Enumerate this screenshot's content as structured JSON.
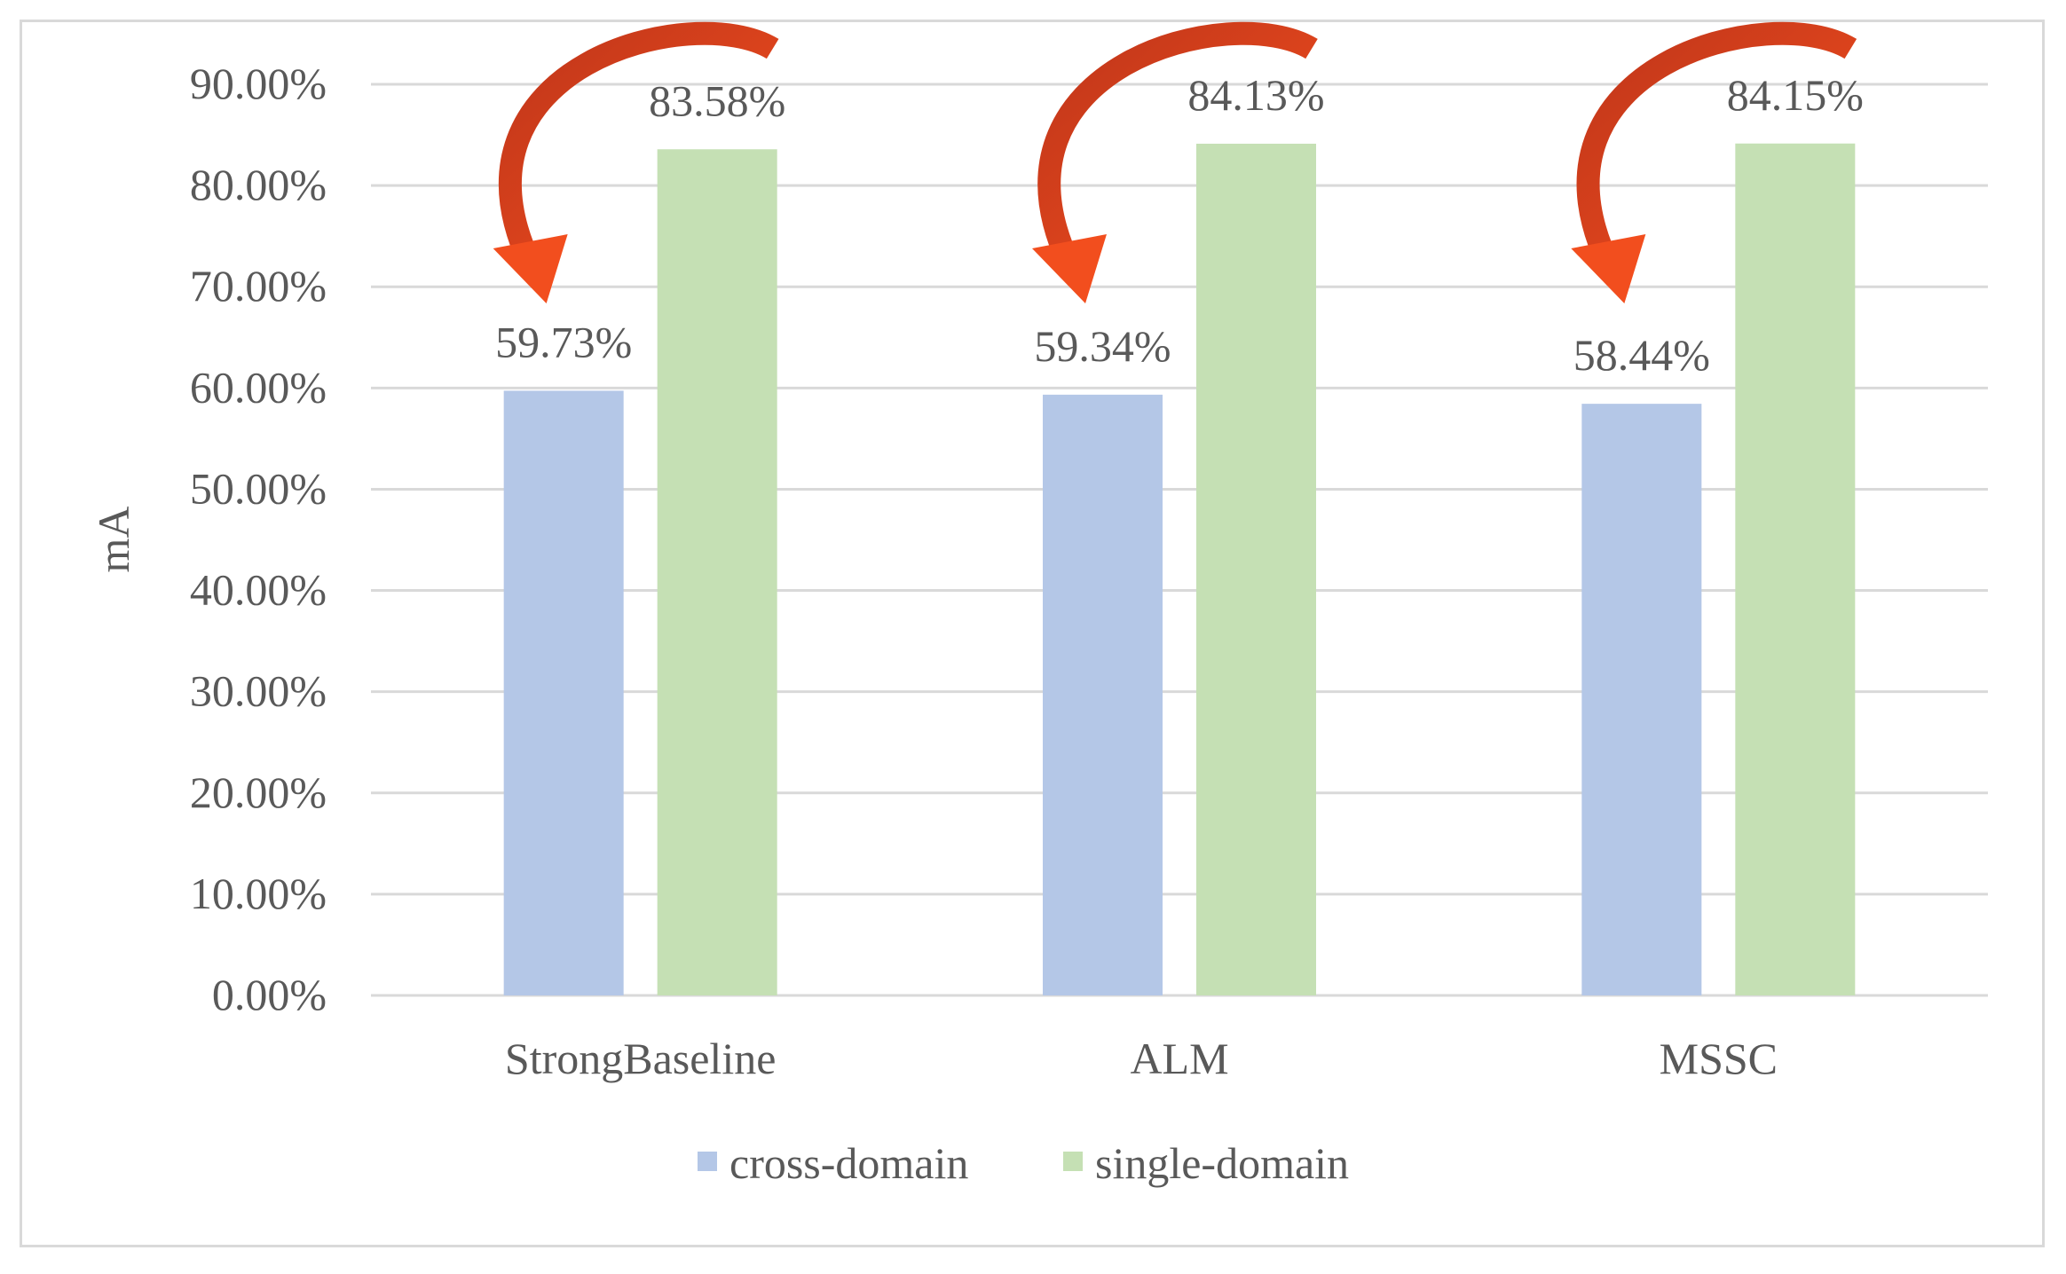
{
  "chart_data": {
    "type": "bar",
    "categories": [
      "StrongBaseline",
      "ALM",
      "MSSC"
    ],
    "series": [
      {
        "name": "cross-domain",
        "values": [
          59.73,
          59.34,
          58.44
        ],
        "labels": [
          "59.73%",
          "59.34%",
          "58.44%"
        ],
        "color": "#b4c7e7"
      },
      {
        "name": "single-domain",
        "values": [
          83.58,
          84.13,
          84.15
        ],
        "labels": [
          "83.58%",
          "84.13%",
          "84.15%"
        ],
        "color": "#c5e0b4"
      }
    ],
    "ylabel": "mA",
    "xlabel": "",
    "ylim": [
      0,
      90
    ],
    "yticks": [
      "0.00%",
      "10.00%",
      "20.00%",
      "30.00%",
      "40.00%",
      "50.00%",
      "60.00%",
      "70.00%",
      "80.00%",
      "90.00%"
    ],
    "grid": true,
    "legend": "bottom",
    "annotations": "curved arrows from single-domain bar to cross-domain bar in each group",
    "arrow_color": "#f24e1e",
    "grid_color": "#d9d9d9"
  }
}
